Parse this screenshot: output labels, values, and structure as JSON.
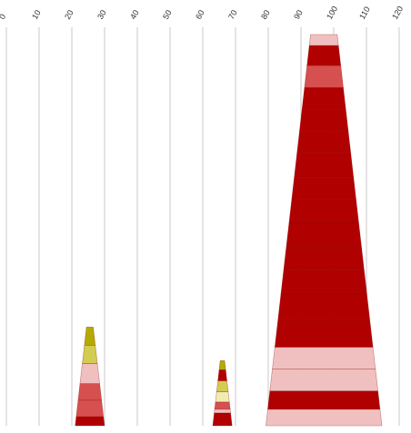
{
  "chart_data": {
    "type": "bar",
    "xlim": [
      0,
      120
    ],
    "ticks": [
      0,
      10,
      20,
      30,
      40,
      50,
      60,
      70,
      80,
      90,
      100,
      110,
      120
    ],
    "grid": true,
    "legend": "none",
    "colors": {
      "dark_red": "#b00000",
      "red": "#d65050",
      "pink": "#f0c0c0",
      "olive": "#b3ab00",
      "yellow": "#d2cc50",
      "cream": "#f0ecb0"
    },
    "stacks": [
      {
        "center": 25.5,
        "segments": [
          {
            "value": 2.5,
            "color": "dark_red"
          },
          {
            "value": 4.5,
            "color": "red"
          },
          {
            "value": 4.5,
            "color": "red"
          },
          {
            "value": 5.5,
            "color": "pink"
          },
          {
            "value": 5.0,
            "color": "yellow"
          },
          {
            "value": 5.0,
            "color": "olive"
          }
        ]
      },
      {
        "center": 66.0,
        "segments": [
          {
            "value": 3.5,
            "color": "dark_red"
          },
          {
            "value": 1.0,
            "color": "pink"
          },
          {
            "value": 2.0,
            "color": "red"
          },
          {
            "value": 2.8,
            "color": "cream"
          },
          {
            "value": 3.0,
            "color": "yellow"
          },
          {
            "value": 3.0,
            "color": "dark_red"
          },
          {
            "value": 2.5,
            "color": "olive"
          }
        ]
      },
      {
        "center": 97.0,
        "segments": [
          {
            "value": 4.5,
            "color": "pink"
          },
          {
            "value": 5.0,
            "color": "dark_red"
          },
          {
            "value": 6.0,
            "color": "pink"
          },
          {
            "value": 6.0,
            "color": "pink"
          },
          {
            "value": 7.5,
            "color": "dark_red"
          },
          {
            "value": 7.0,
            "color": "dark_red"
          },
          {
            "value": 6.5,
            "color": "dark_red"
          },
          {
            "value": 6.0,
            "color": "dark_red"
          },
          {
            "value": 7.0,
            "color": "dark_red"
          },
          {
            "value": 6.5,
            "color": "dark_red"
          },
          {
            "value": 6.0,
            "color": "dark_red"
          },
          {
            "value": 6.5,
            "color": "dark_red"
          },
          {
            "value": 6.0,
            "color": "dark_red"
          },
          {
            "value": 6.0,
            "color": "dark_red"
          },
          {
            "value": 6.0,
            "color": "dark_red"
          },
          {
            "value": 6.0,
            "color": "red"
          },
          {
            "value": 5.5,
            "color": "dark_red"
          },
          {
            "value": 3.0,
            "color": "pink"
          }
        ]
      }
    ]
  }
}
